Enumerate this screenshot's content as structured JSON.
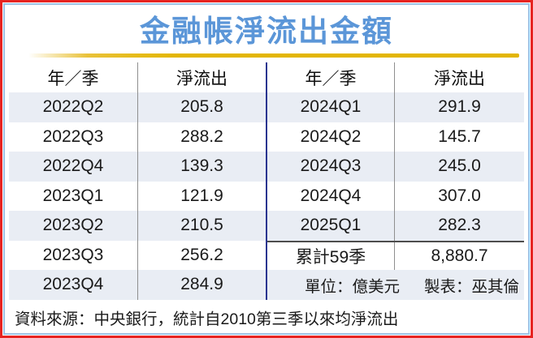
{
  "title": "金融帳淨流出金額",
  "table": {
    "col_headers": {
      "period": "年／季",
      "outflow": "淨流出"
    },
    "left_rows": [
      {
        "period": "2022Q2",
        "value": "205.8"
      },
      {
        "period": "2022Q3",
        "value": "288.2"
      },
      {
        "period": "2022Q4",
        "value": "139.3"
      },
      {
        "period": "2023Q1",
        "value": "121.9"
      },
      {
        "period": "2023Q2",
        "value": "210.5"
      },
      {
        "period": "2023Q3",
        "value": "256.2"
      },
      {
        "period": "2023Q4",
        "value": "284.9"
      }
    ],
    "right_rows": [
      {
        "period": "2024Q1",
        "value": "291.9"
      },
      {
        "period": "2024Q2",
        "value": "145.7"
      },
      {
        "period": "2024Q3",
        "value": "245.0"
      },
      {
        "period": "2024Q4",
        "value": "307.0"
      },
      {
        "period": "2025Q1",
        "value": "282.3"
      }
    ],
    "summary": {
      "label": "累計59季",
      "value": "8,880.7"
    }
  },
  "notes": {
    "unit": "單位：億美元",
    "credit": "製表：巫其倫",
    "source": "資料來源：中央銀行，統計自2010第三季以來均淨流出"
  },
  "colors": {
    "title_blue": "#5b96d8",
    "outer_border_red": "#e62421",
    "inner_border_blue": "#9cc3e6",
    "divider_navy": "#2a3590",
    "divider_gray": "#8f8f8f",
    "row_shade": "#e9edf4",
    "accent_gold": "#e3b600",
    "summary_border": "#4d4d4d"
  },
  "chart_data": {
    "type": "table",
    "title": "金融帳淨流出金額",
    "unit": "億美元",
    "columns": [
      "年／季",
      "淨流出"
    ],
    "rows": [
      [
        "2022Q2",
        205.8
      ],
      [
        "2022Q3",
        288.2
      ],
      [
        "2022Q4",
        139.3
      ],
      [
        "2023Q1",
        121.9
      ],
      [
        "2023Q2",
        210.5
      ],
      [
        "2023Q3",
        256.2
      ],
      [
        "2023Q4",
        284.9
      ],
      [
        "2024Q1",
        291.9
      ],
      [
        "2024Q2",
        145.7
      ],
      [
        "2024Q3",
        245.0
      ],
      [
        "2024Q4",
        307.0
      ],
      [
        "2025Q1",
        282.3
      ]
    ],
    "summary": {
      "label": "累計59季",
      "value": 8880.7
    },
    "source": "資料來源：中央銀行，統計自2010第三季以來均淨流出",
    "credit": "製表：巫其倫"
  }
}
